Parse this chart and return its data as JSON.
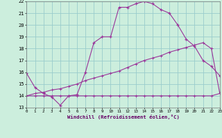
{
  "xlabel": "Windchill (Refroidissement éolien,°C)",
  "xlim": [
    0,
    23
  ],
  "ylim": [
    13,
    22
  ],
  "yticks": [
    13,
    14,
    15,
    16,
    17,
    18,
    19,
    20,
    21,
    22
  ],
  "xticks": [
    0,
    1,
    2,
    3,
    4,
    5,
    6,
    7,
    8,
    9,
    10,
    11,
    12,
    13,
    14,
    15,
    16,
    17,
    18,
    19,
    20,
    21,
    22,
    23
  ],
  "background_color": "#cceedd",
  "line_color": "#993399",
  "grid_color": "#99cccc",
  "curve1_x": [
    0,
    1,
    2,
    3,
    4,
    5,
    6,
    7,
    8,
    9,
    10,
    11,
    12,
    13,
    14,
    15,
    16,
    17,
    18,
    19,
    20,
    21,
    22,
    23
  ],
  "curve1_y": [
    15.9,
    14.7,
    14.2,
    13.9,
    13.2,
    14.0,
    14.1,
    16.0,
    18.5,
    19.0,
    19.0,
    21.5,
    21.5,
    21.8,
    22.0,
    21.8,
    21.3,
    21.0,
    20.0,
    18.8,
    18.2,
    17.0,
    16.5,
    15.7
  ],
  "curve2_x": [
    0,
    1,
    2,
    3,
    4,
    5,
    6,
    7,
    8,
    9,
    10,
    11,
    12,
    13,
    14,
    15,
    16,
    17,
    18,
    19,
    20,
    21,
    22,
    23
  ],
  "curve2_y": [
    14.0,
    14.2,
    14.3,
    14.5,
    14.6,
    14.8,
    15.0,
    15.3,
    15.5,
    15.7,
    15.9,
    16.1,
    16.4,
    16.7,
    17.0,
    17.2,
    17.4,
    17.7,
    17.9,
    18.1,
    18.3,
    18.5,
    18.0,
    14.2
  ],
  "curve3_x": [
    0,
    1,
    2,
    3,
    4,
    5,
    6,
    7,
    8,
    9,
    10,
    11,
    12,
    13,
    14,
    15,
    16,
    17,
    18,
    19,
    20,
    21,
    22,
    23
  ],
  "curve3_y": [
    14.0,
    14.0,
    14.0,
    14.0,
    14.0,
    14.0,
    14.0,
    14.0,
    14.0,
    14.0,
    14.0,
    14.0,
    14.0,
    14.0,
    14.0,
    14.0,
    14.0,
    14.0,
    14.0,
    14.0,
    14.0,
    14.0,
    14.0,
    14.2
  ]
}
